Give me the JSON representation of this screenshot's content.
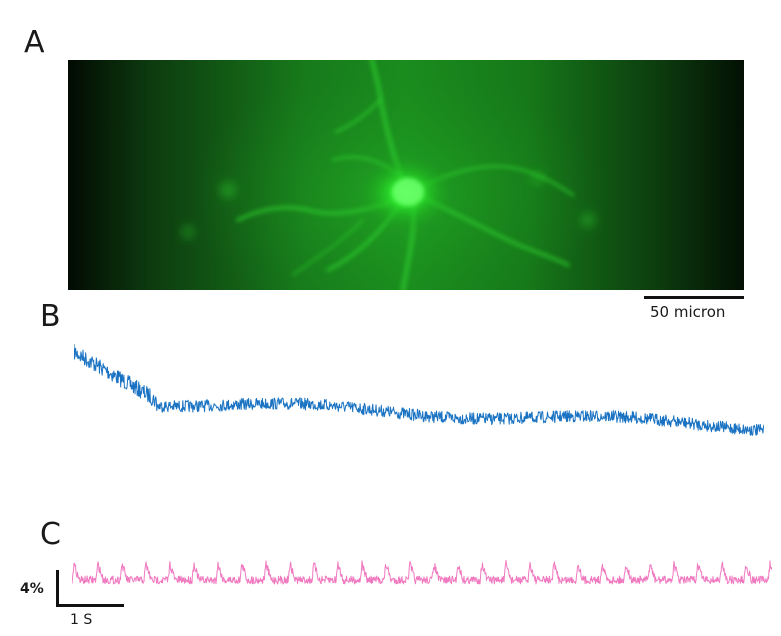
{
  "panels": {
    "a": {
      "letter": "A"
    },
    "b": {
      "letter": "B"
    },
    "c": {
      "letter": "C"
    }
  },
  "micrograph": {
    "scale_bar_label": "50 micron"
  },
  "trace_c_scale": {
    "amplitude_label": "4%",
    "time_label": "1 S"
  },
  "colors": {
    "background": "#ffffff",
    "micrograph_glow": "#22dd22",
    "micrograph_dark": "#020a02",
    "trace_b": "#1a73c2",
    "trace_c": "#f07ac0",
    "scale_bars": "#111111"
  }
}
